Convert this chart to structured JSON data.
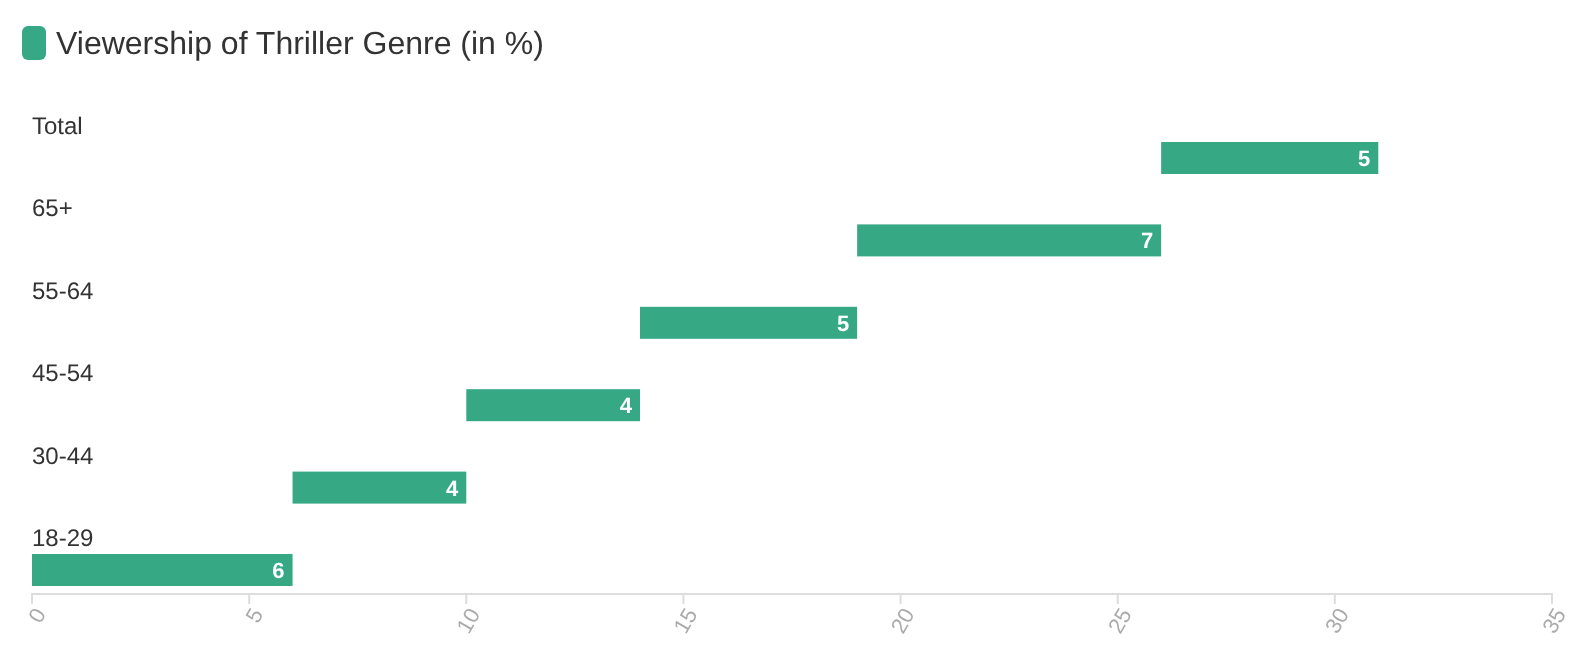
{
  "chart_data": {
    "type": "bar",
    "orientation": "horizontal",
    "categories": [
      "Total",
      "65+",
      "55-64",
      "45-54",
      "30-44",
      "18-29"
    ],
    "series": [
      {
        "name": "Viewership of Thriller Genre (in %)",
        "color": "#36a984",
        "values": [
          5,
          7,
          5,
          4,
          4,
          6
        ],
        "base": [
          26,
          19,
          14,
          10,
          6,
          0
        ]
      }
    ],
    "xlim": [
      0,
      35
    ],
    "xticks": [
      0,
      5,
      10,
      15,
      20,
      25,
      30,
      35
    ],
    "data_labels": true,
    "legend": "top left",
    "grid": false
  }
}
